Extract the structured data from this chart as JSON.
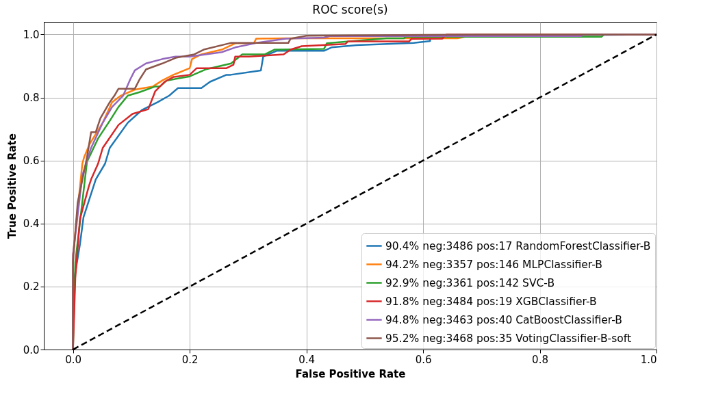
{
  "chart_data": {
    "type": "line",
    "title": "ROC score(s)",
    "xlabel": "False Positive Rate",
    "ylabel": "True Positive Rate",
    "xlim": [
      -0.05,
      1.0
    ],
    "ylim": [
      0,
      1.04
    ],
    "xticks": [
      {
        "value": 0,
        "label": "0.0"
      },
      {
        "value": 0.2,
        "label": "0.2"
      },
      {
        "value": 0.4,
        "label": "0.4"
      },
      {
        "value": 0.6,
        "label": "0.6"
      },
      {
        "value": 0.8,
        "label": "0.8"
      },
      {
        "value": 1,
        "label": "1.0"
      }
    ],
    "yticks": [
      {
        "value": 0,
        "label": "0.0"
      },
      {
        "value": 0.2,
        "label": "0.2"
      },
      {
        "value": 0.4,
        "label": "0.4"
      },
      {
        "value": 0.6,
        "label": "0.6"
      },
      {
        "value": 0.8,
        "label": "0.8"
      },
      {
        "value": 1,
        "label": "1.0"
      }
    ],
    "grid": true,
    "legend": "bottom right",
    "series": [
      {
        "name": "90.4% neg:3486 pos:17 RandomForestClassifier-B",
        "color": "#1f77b4",
        "x": [
          0,
          0,
          0.012,
          0.018,
          0.039,
          0.055,
          0.063,
          0.094,
          0.118,
          0.145,
          0.165,
          0.18,
          0.22,
          0.235,
          0.263,
          0.27,
          0.322,
          0.326,
          0.349,
          0.43,
          0.443,
          0.486,
          0.584,
          0.612,
          0.612,
          1
        ],
        "values": [
          0,
          0.2,
          0.335,
          0.42,
          0.54,
          0.59,
          0.64,
          0.72,
          0.76,
          0.785,
          0.806,
          0.83,
          0.83,
          0.85,
          0.872,
          0.872,
          0.886,
          0.93,
          0.948,
          0.948,
          0.959,
          0.966,
          0.973,
          0.979,
          0.995,
          1
        ]
      },
      {
        "name": "94.2% neg:3357 pos:146 MLPClassifier-B",
        "color": "#ff7f0e",
        "x": [
          0,
          0,
          0.016,
          0.019,
          0.029,
          0.051,
          0.067,
          0.082,
          0.106,
          0.137,
          0.153,
          0.172,
          0.2,
          0.204,
          0.22,
          0.255,
          0.278,
          0.31,
          0.314,
          0.365,
          0.659,
          0.69,
          1
        ],
        "values": [
          0,
          0.3,
          0.59,
          0.61,
          0.654,
          0.72,
          0.785,
          0.806,
          0.825,
          0.835,
          0.854,
          0.872,
          0.893,
          0.922,
          0.937,
          0.952,
          0.972,
          0.972,
          0.987,
          0.988,
          0.988,
          1,
          1
        ]
      },
      {
        "name": "92.9% neg:3361 pos:142 SVC-B",
        "color": "#2ca02c",
        "x": [
          0,
          0.004,
          0.024,
          0.043,
          0.063,
          0.078,
          0.094,
          0.114,
          0.141,
          0.149,
          0.161,
          0.2,
          0.227,
          0.271,
          0.29,
          0.329,
          0.345,
          0.43,
          0.435,
          0.537,
          0.567,
          0.57,
          0.906,
          0.91,
          1
        ],
        "values": [
          0,
          0.278,
          0.596,
          0.67,
          0.726,
          0.77,
          0.806,
          0.817,
          0.835,
          0.835,
          0.854,
          0.867,
          0.889,
          0.908,
          0.937,
          0.937,
          0.952,
          0.954,
          0.972,
          0.988,
          0.988,
          0.993,
          0.993,
          1,
          1
        ]
      },
      {
        "name": "91.8% neg:3484 pos:19 XGBClassifier-B",
        "color": "#d62728",
        "x": [
          0,
          0.004,
          0.012,
          0.027,
          0.031,
          0.043,
          0.051,
          0.078,
          0.102,
          0.129,
          0.141,
          0.157,
          0.172,
          0.2,
          0.212,
          0.263,
          0.275,
          0.278,
          0.302,
          0.361,
          0.373,
          0.392,
          0.467,
          0.471,
          0.576,
          0.58,
          0.633,
          0.64,
          1
        ],
        "values": [
          0,
          0.227,
          0.415,
          0.517,
          0.54,
          0.59,
          0.64,
          0.713,
          0.748,
          0.763,
          0.82,
          0.85,
          0.865,
          0.872,
          0.893,
          0.893,
          0.904,
          0.93,
          0.93,
          0.937,
          0.952,
          0.963,
          0.97,
          0.978,
          0.978,
          0.986,
          0.987,
          1,
          1
        ]
      },
      {
        "name": "94.8% neg:3463 pos:40 CatBoostClassifier-B",
        "color": "#9467bd",
        "x": [
          0,
          0,
          0.016,
          0.031,
          0.051,
          0.067,
          0.086,
          0.098,
          0.106,
          0.125,
          0.153,
          0.176,
          0.2,
          0.255,
          0.278,
          0.314,
          0.365,
          0.43,
          0.44,
          0.871,
          0.875,
          1
        ],
        "values": [
          0,
          0.3,
          0.553,
          0.64,
          0.72,
          0.77,
          0.806,
          0.857,
          0.886,
          0.908,
          0.922,
          0.93,
          0.93,
          0.944,
          0.959,
          0.973,
          0.987,
          0.99,
          0.995,
          0.995,
          1,
          1
        ]
      },
      {
        "name": "95.2% neg:3468 pos:35 VotingClassifier-B-soft",
        "color": "#8c564b",
        "x": [
          0,
          0,
          0.008,
          0.024,
          0.031,
          0.039,
          0.047,
          0.063,
          0.071,
          0.078,
          0.106,
          0.114,
          0.125,
          0.153,
          0.176,
          0.208,
          0.224,
          0.27,
          0.278,
          0.369,
          0.373,
          0.4,
          0.692,
          1
        ],
        "values": [
          0,
          0.278,
          0.466,
          0.61,
          0.69,
          0.69,
          0.734,
          0.785,
          0.806,
          0.828,
          0.828,
          0.857,
          0.889,
          0.908,
          0.926,
          0.937,
          0.952,
          0.973,
          0.973,
          0.973,
          0.987,
          0.996,
          1,
          1
        ]
      },
      {
        "color": "#000000",
        "line_style": "dashed",
        "x": [
          0,
          1
        ],
        "values": [
          0,
          1
        ]
      }
    ]
  }
}
